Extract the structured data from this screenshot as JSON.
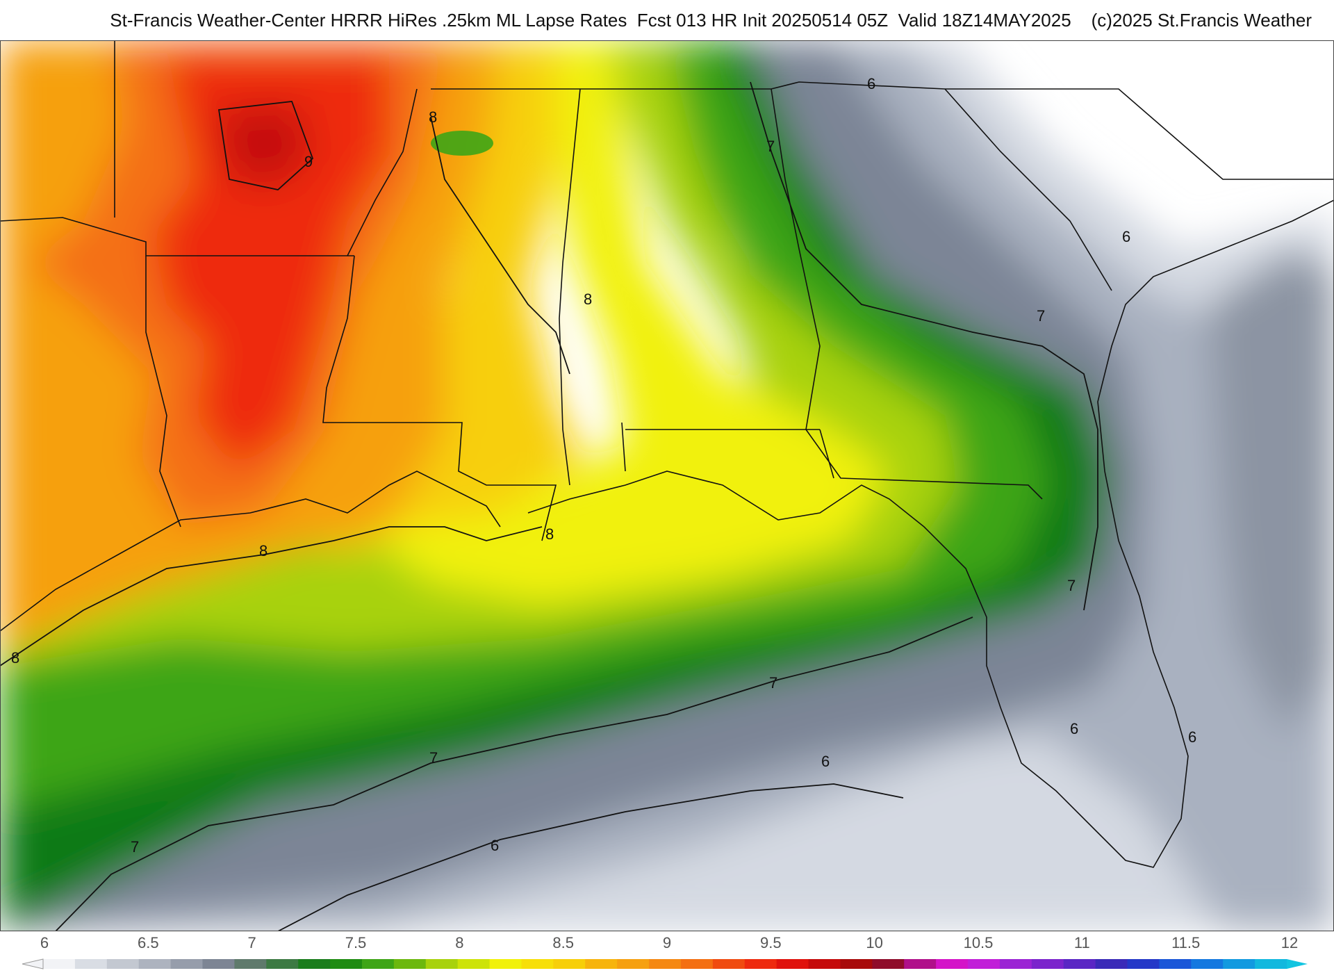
{
  "title": "St-Francis Weather-Center HRRR HiRes .25km ML Lapse Rates  Fcst 013 HR Init 20250514 05Z  Valid 18Z14MAY2025    (c)2025 St.Francis Weather",
  "map": {
    "contour_labels": [
      "6",
      "7",
      "8",
      "9"
    ],
    "colors": {
      "white": "#ffffff",
      "grey_light": "#d4d9e2",
      "grey_mid": "#a9b1c0",
      "grey_dark": "#7b8596",
      "green_dark": "#0e7a12",
      "green": "#3ea516",
      "green_light": "#a8d20c",
      "yellow": "#f1f10a",
      "yellow_orange": "#f7cf09",
      "orange": "#f6a010",
      "orange_red": "#f46f12",
      "red": "#ee2a0e",
      "dark_red": "#c50a0a"
    }
  },
  "colorbar": {
    "ticks": [
      "6",
      "6.5",
      "7",
      "7.5",
      "8",
      "8.5",
      "9",
      "9.5",
      "10",
      "10.5",
      "11",
      "11.5",
      "12"
    ],
    "colors": [
      "#f2f3f6",
      "#d9dde4",
      "#c3c8d1",
      "#adb3bf",
      "#969dab",
      "#7d8594",
      "#5f7a6c",
      "#3c7a43",
      "#1a7d1c",
      "#1f8c12",
      "#3ea516",
      "#6cb80e",
      "#a8d20c",
      "#cde308",
      "#f1f10a",
      "#f7df09",
      "#f7cf09",
      "#f7b40d",
      "#f6a010",
      "#f58812",
      "#f46f12",
      "#f04b10",
      "#ee2a0e",
      "#e0120c",
      "#c50a0a",
      "#a80a0a",
      "#8f0c2a",
      "#b0108a",
      "#d414c8",
      "#c11fd8",
      "#9b24d4",
      "#7b24cc",
      "#5a26c4",
      "#3a2ab8",
      "#2438c8",
      "#1a56d8",
      "#1478e0",
      "#129ae0",
      "#12b8de"
    ]
  }
}
